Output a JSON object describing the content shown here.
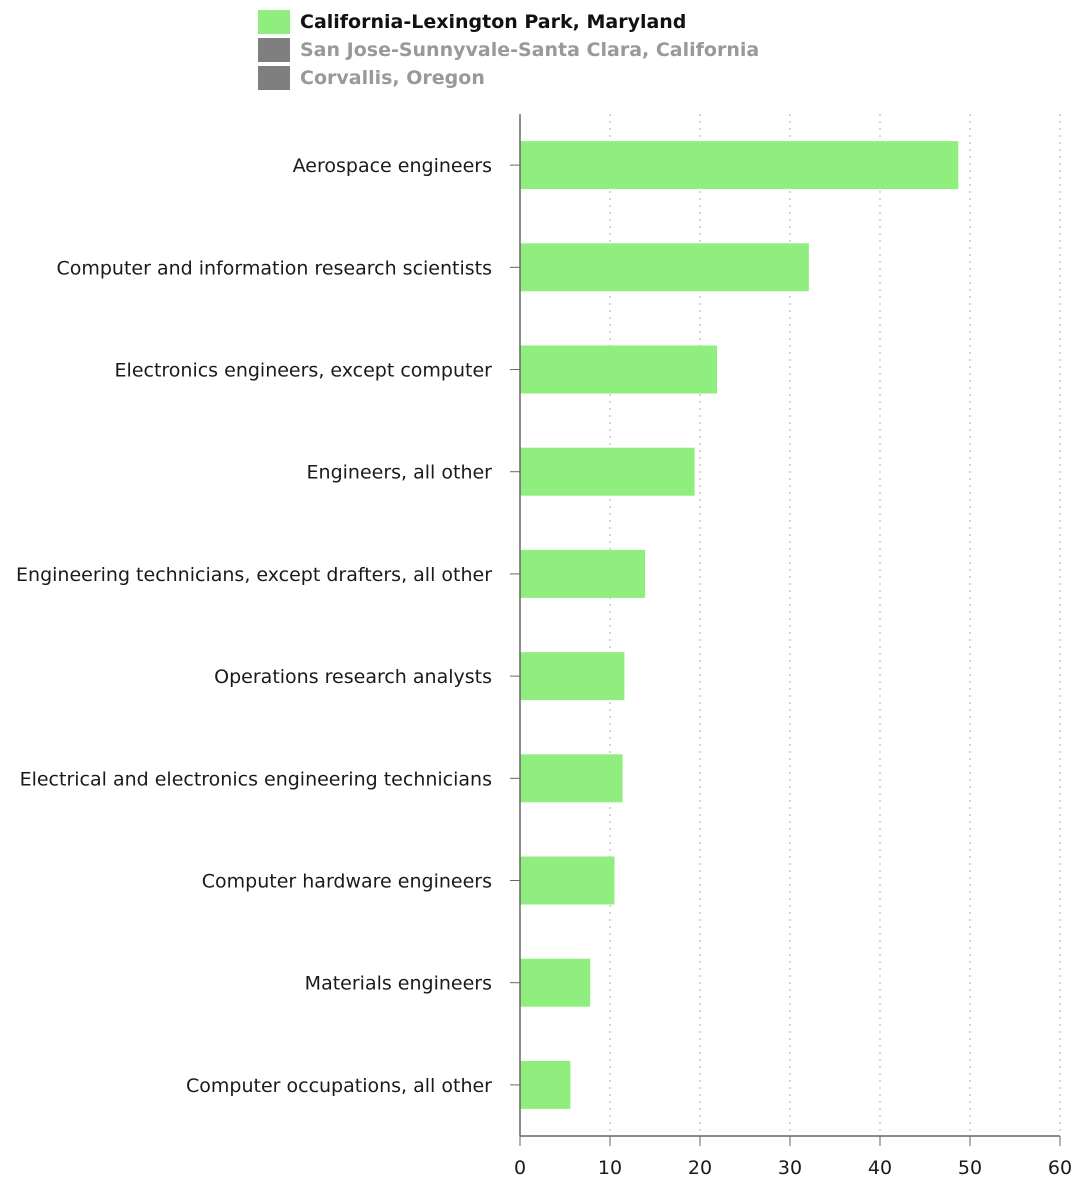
{
  "legend": [
    {
      "name": "California-Lexington Park, Maryland",
      "color": "#90ee7e",
      "text_color": "#111111",
      "active": true
    },
    {
      "name": "San Jose-Sunnyvale-Santa Clara, California",
      "color": "#7f7f7f",
      "text_color": "#999999",
      "active": false
    },
    {
      "name": "Corvallis, Oregon",
      "color": "#7f7f7f",
      "text_color": "#999999",
      "active": false
    }
  ],
  "colors": {
    "bar": "#90ee7e",
    "axis": "#666666",
    "grid": "#c8c8c8"
  },
  "chart_data": {
    "type": "bar",
    "orientation": "horizontal",
    "categories": [
      "Aerospace engineers",
      "Computer and information research scientists",
      "Electronics engineers, except computer",
      "Engineers, all other",
      "Engineering technicians, except drafters, all other",
      "Operations research analysts",
      "Electrical and electronics engineering technicians",
      "Computer hardware engineers",
      "Materials engineers",
      "Computer occupations, all other"
    ],
    "series": [
      {
        "name": "California-Lexington Park, Maryland",
        "values": [
          48.7,
          32.1,
          21.9,
          19.4,
          13.9,
          11.6,
          11.4,
          10.5,
          7.8,
          5.6
        ]
      }
    ],
    "xticks": [
      0,
      10,
      20,
      30,
      40,
      50,
      60
    ],
    "xlim": [
      0,
      60
    ],
    "grid": "vertical dotted",
    "legend_position": "top-left"
  }
}
